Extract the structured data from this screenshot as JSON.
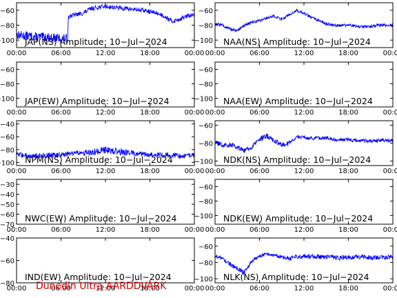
{
  "footer": "Dunedin Ultra AARDDVARK",
  "colors": {
    "trace": "#0000ff",
    "axis": "#000000",
    "footer": "#cc0000",
    "background": "#ffffff"
  },
  "chart_data": [
    {
      "type": "line",
      "title": "JAP(NS) Amplitude: 10-Jul-2024",
      "x_ticks": [
        "00:00",
        "06:00",
        "12:00",
        "18:00",
        "00:00"
      ],
      "ylim": [
        -110,
        -50
      ],
      "y_ticks": [
        -100,
        -80,
        -60
      ],
      "grid": false,
      "x_hours": [
        0,
        1,
        2,
        3,
        4,
        5,
        6,
        6.9,
        7.0,
        8,
        9,
        10,
        11,
        12,
        13,
        14,
        15,
        16,
        17,
        18,
        19,
        20,
        21,
        22,
        23,
        24
      ],
      "y": [
        -93,
        -94,
        -95,
        -96,
        -96,
        -97,
        -98,
        -98,
        -68,
        -66,
        -64,
        -58,
        -56,
        -55,
        -56,
        -57,
        -58,
        -59,
        -60,
        -62,
        -64,
        -68,
        -75,
        -72,
        -68,
        -66
      ],
      "noise": [
        6,
        6,
        6,
        6,
        6,
        6,
        6,
        6,
        3,
        3,
        3,
        3,
        3,
        3,
        3,
        3,
        3,
        3,
        3,
        3,
        3,
        3,
        3,
        3,
        3,
        3
      ]
    },
    {
      "type": "line",
      "title": "NAA(NS) Amplitude: 10-Jul-2024",
      "x_ticks": [
        "00:00",
        "06:00",
        "12:00",
        "18:00",
        "00:00"
      ],
      "ylim": [
        -110,
        -50
      ],
      "y_ticks": [
        -100,
        -80,
        -60
      ],
      "grid": false,
      "x_hours": [
        0,
        1,
        2,
        3,
        4,
        5,
        6,
        7,
        8,
        9,
        10,
        11,
        12,
        13,
        14,
        15,
        16,
        17,
        18,
        19,
        20,
        21,
        22,
        23,
        24
      ],
      "y": [
        -78,
        -80,
        -85,
        -88,
        -80,
        -76,
        -74,
        -70,
        -68,
        -72,
        -66,
        -60,
        -64,
        -70,
        -74,
        -78,
        -80,
        -80,
        -80,
        -81,
        -82,
        -82,
        -80,
        -80,
        -80
      ],
      "noise": [
        2,
        2,
        2,
        2,
        2,
        2,
        2,
        2,
        2,
        2,
        2,
        2,
        2,
        2,
        2,
        2,
        2,
        2,
        2,
        2,
        2,
        2,
        2,
        2,
        2
      ]
    },
    {
      "type": "line",
      "title": "JAP(EW) Amplitude: 10-Jul-2024",
      "x_ticks": [
        "00:00",
        "06:00",
        "12:00",
        "18:00",
        "00:00"
      ],
      "ylim": [
        -112,
        -50
      ],
      "y_ticks": [
        -100,
        -80,
        -60
      ],
      "grid": false,
      "x_hours": [],
      "y": [],
      "noise": []
    },
    {
      "type": "line",
      "title": "NAA(EW) Amplitude: 10-Jul-2024",
      "x_ticks": [
        "00:00",
        "06:00",
        "12:00",
        "18:00",
        "00:00"
      ],
      "ylim": [
        -112,
        -50
      ],
      "y_ticks": [
        -100,
        -80,
        -60
      ],
      "grid": false,
      "x_hours": [],
      "y": [],
      "noise": []
    },
    {
      "type": "line",
      "title": "NPM(NS) Amplitude: 10-Jul-2024",
      "x_ticks": [
        "00:00",
        "06:00",
        "12:00",
        "18:00",
        "00:00"
      ],
      "ylim": [
        -105,
        -35
      ],
      "y_ticks": [
        -100,
        -80,
        -60,
        -40
      ],
      "grid": false,
      "x_hours": [
        0,
        2,
        4,
        6,
        8,
        10,
        12,
        14,
        16,
        18,
        20,
        22,
        24
      ],
      "y": [
        -88,
        -90,
        -89,
        -88,
        -86,
        -85,
        -80,
        -84,
        -86,
        -88,
        -88,
        -90,
        -89
      ],
      "noise": [
        4,
        4,
        4,
        4,
        4,
        5,
        6,
        5,
        4,
        4,
        4,
        4,
        4
      ]
    },
    {
      "type": "line",
      "title": "NDK(NS) Amplitude: 10-Jul-2024",
      "x_ticks": [
        "00:00",
        "06:00",
        "12:00",
        "18:00",
        "00:00"
      ],
      "ylim": [
        -105,
        -55
      ],
      "y_ticks": [
        -100,
        -80,
        -60
      ],
      "grid": false,
      "x_hours": [
        0,
        1,
        2,
        3,
        4,
        5,
        6,
        7,
        8,
        9,
        10,
        11,
        12,
        13,
        14,
        15,
        16,
        17,
        18,
        19,
        20,
        21,
        22,
        23,
        24
      ],
      "y": [
        -80,
        -82,
        -82,
        -84,
        -88,
        -84,
        -76,
        -72,
        -78,
        -82,
        -80,
        -73,
        -73,
        -75,
        -74,
        -74,
        -76,
        -76,
        -76,
        -77,
        -77,
        -78,
        -77,
        -77,
        -77
      ],
      "noise": [
        3,
        3,
        3,
        3,
        3,
        3,
        3,
        3,
        3,
        3,
        3,
        2,
        2,
        2,
        2,
        2,
        2,
        2,
        2,
        2,
        2,
        2,
        2,
        2,
        2
      ]
    },
    {
      "type": "line",
      "title": "NWC(EW) Amplitude: 10-Jul-2024",
      "x_ticks": [
        "00:00",
        "06:00",
        "12:00",
        "18:00",
        "00:00"
      ],
      "ylim": [
        -70,
        -25
      ],
      "y_ticks": [
        -70,
        -60,
        -50,
        -40,
        -30
      ],
      "grid": false,
      "x_hours": [],
      "y": [],
      "noise": []
    },
    {
      "type": "line",
      "title": "NDK(EW) Amplitude: 10-Jul-2024",
      "x_ticks": [
        "00:00",
        "06:00",
        "12:00",
        "18:00",
        "00:00"
      ],
      "ylim": [
        -112,
        -50
      ],
      "y_ticks": [
        -100,
        -80,
        -60
      ],
      "grid": false,
      "x_hours": [],
      "y": [],
      "noise": []
    },
    {
      "type": "line",
      "title": "IND(EW) Amplitude: 10-Jul-2024",
      "x_ticks": [
        "00:00",
        "06:00",
        "12:00",
        "18:00",
        "00:00"
      ],
      "ylim": [
        -80,
        -40
      ],
      "y_ticks": [
        -80,
        -60,
        -40
      ],
      "grid": false,
      "x_hours": [],
      "y": [],
      "noise": []
    },
    {
      "type": "line",
      "title": "NLK(NS) Amplitude: 10-Jul-2024",
      "x_ticks": [
        "00:00",
        "06:00",
        "12:00",
        "18:00",
        "00:00"
      ],
      "ylim": [
        -105,
        -50
      ],
      "y_ticks": [
        -100,
        -80,
        -60
      ],
      "grid": false,
      "x_hours": [
        0,
        1,
        2,
        3,
        4,
        5,
        6,
        7,
        8,
        9,
        10,
        11,
        12,
        13,
        14,
        15,
        16,
        17,
        18,
        19,
        20,
        21,
        22,
        23,
        24
      ],
      "y": [
        -72,
        -75,
        -82,
        -88,
        -92,
        -78,
        -72,
        -70,
        -71,
        -73,
        -75,
        -73,
        -72,
        -73,
        -73,
        -73,
        -74,
        -74,
        -74,
        -73,
        -73,
        -74,
        -74,
        -74,
        -73
      ],
      "noise": [
        2,
        2,
        3,
        3,
        3,
        3,
        2,
        2,
        2,
        2,
        3,
        3,
        3,
        3,
        3,
        3,
        3,
        3,
        3,
        3,
        3,
        3,
        3,
        3,
        3
      ]
    }
  ]
}
